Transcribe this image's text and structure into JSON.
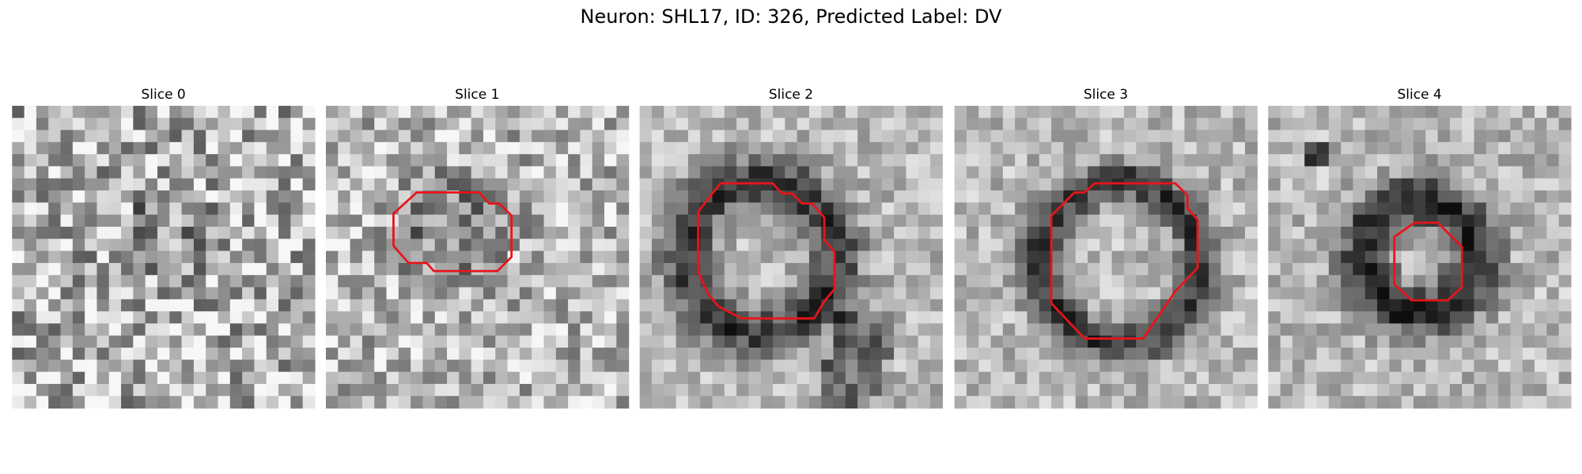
{
  "title": "Neuron: SHL17, ID: 326, Predicted Label: DV",
  "panels": [
    {
      "title": "Slice 0"
    },
    {
      "title": "Slice 1"
    },
    {
      "title": "Slice 2"
    },
    {
      "title": "Slice 3"
    },
    {
      "title": "Slice 4"
    }
  ]
}
